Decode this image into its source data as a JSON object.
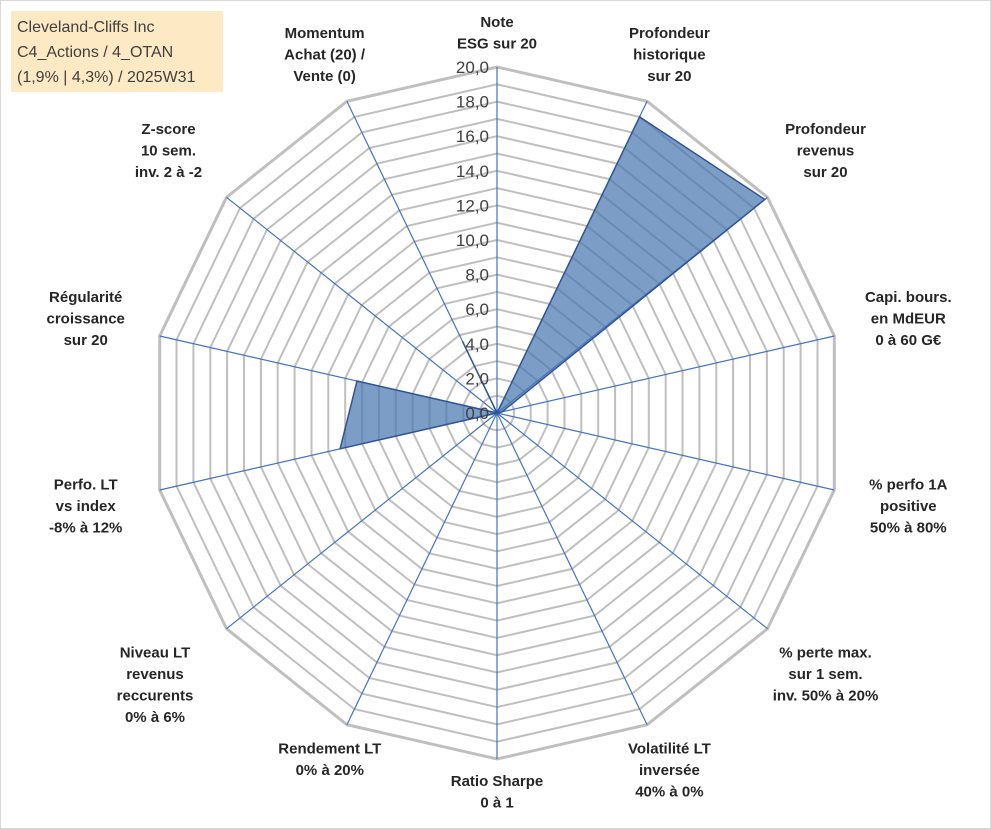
{
  "title_box": {
    "line1": "Cleveland-Cliffs Inc",
    "line2": "C4_Actions / 4_OTAN",
    "line3": "(1,9% | 4,3%) / 2025W31"
  },
  "colors": {
    "grid": "#bfbfbf",
    "spokes": "#4472c4",
    "fill": "#4a78b0",
    "stroke": "#2f5597",
    "title_bg": "#fde9c4"
  },
  "chart_data": {
    "type": "radar",
    "rmin": 0,
    "rmax": 20,
    "grid_step": 1,
    "tick_step": 2,
    "tick_labels": [
      "0,0",
      "2,0",
      "4,0",
      "6,0",
      "8,0",
      "10,0",
      "12,0",
      "14,0",
      "16,0",
      "18,0",
      "20,0"
    ],
    "axes": [
      {
        "label": [
          "Note",
          "ESG sur 20"
        ],
        "value": 0
      },
      {
        "label": [
          "Profondeur",
          "historique",
          "sur 20"
        ],
        "value": 19
      },
      {
        "label": [
          "Profondeur",
          "revenus",
          "sur 20"
        ],
        "value": 19.8
      },
      {
        "label": [
          "Capi. bours.",
          "en MdEUR",
          "0 à 60 G€"
        ],
        "value": 0.3
      },
      {
        "label": [
          "% perfo 1A",
          "positive",
          "50% à 80%"
        ],
        "value": 0
      },
      {
        "label": [
          "% perte max.",
          "sur 1 sem.",
          "inv. 50% à 20%"
        ],
        "value": 0
      },
      {
        "label": [
          "Volatilité LT",
          "inversée",
          "40% à 0%"
        ],
        "value": 0
      },
      {
        "label": [
          "Ratio Sharpe",
          "0 à 1"
        ],
        "value": 0
      },
      {
        "label": [
          "Rendement LT",
          "0% à 20%"
        ],
        "value": 0
      },
      {
        "label": [
          "Niveau LT",
          "revenus",
          "reccurents",
          "0% à 6%"
        ],
        "value": 0
      },
      {
        "label": [
          "Perfo. LT",
          "vs index",
          "-8% à 12%"
        ],
        "value": 9.3
      },
      {
        "label": [
          "Régularité",
          "croissance",
          "sur 20"
        ],
        "value": 8.3
      },
      {
        "label": [
          "Z-score",
          "10 sem.",
          "inv. 2 à -2"
        ],
        "value": 0
      },
      {
        "label": [
          "Momentum",
          "Achat (20) /",
          "Vente (0)"
        ],
        "value": 4.6
      }
    ],
    "grid": true,
    "legend": "none"
  }
}
